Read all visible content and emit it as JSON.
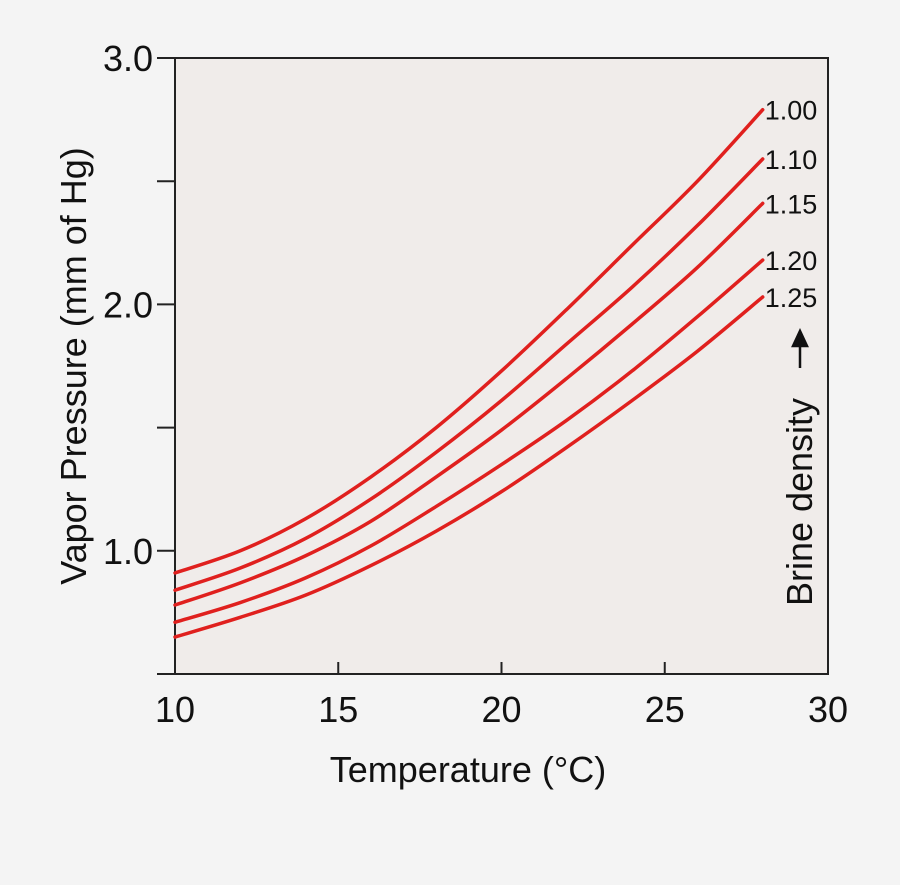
{
  "colors": {
    "page_background": "#f4f4f4",
    "plot_background": "#f0ecea",
    "axis": "#222222",
    "text": "#111111",
    "series_line": "#e0201e"
  },
  "chart_data": {
    "type": "line",
    "title": "",
    "xlabel": "Temperature (°C)",
    "ylabel": "Vapor Pressure (mm of Hg)",
    "xlim": [
      10,
      30
    ],
    "ylim": [
      0.5,
      3.0
    ],
    "x_major_ticks": [
      10,
      15,
      20,
      25,
      30
    ],
    "x_tick_labels": [
      "10",
      "15",
      "20",
      "25",
      "30"
    ],
    "y_major_ticks": [
      1.0,
      2.0,
      3.0
    ],
    "y_tick_labels": [
      "1.0",
      "2.0",
      "3.0"
    ],
    "y_minor_ticks": [
      0.5,
      1.5,
      2.5
    ],
    "grid": false,
    "annotation": "Brine density",
    "x": [
      10,
      12,
      14,
      16,
      18,
      20,
      22,
      24,
      26,
      28
    ],
    "series": [
      {
        "name": "1.00",
        "values": [
          0.91,
          1.0,
          1.13,
          1.3,
          1.5,
          1.73,
          1.98,
          2.24,
          2.5,
          2.79
        ]
      },
      {
        "name": "1.10",
        "values": [
          0.84,
          0.93,
          1.05,
          1.21,
          1.4,
          1.61,
          1.84,
          2.07,
          2.32,
          2.59
        ]
      },
      {
        "name": "1.15",
        "values": [
          0.78,
          0.87,
          0.98,
          1.12,
          1.3,
          1.49,
          1.7,
          1.92,
          2.15,
          2.41
        ]
      },
      {
        "name": "1.20",
        "values": [
          0.71,
          0.79,
          0.89,
          1.02,
          1.18,
          1.35,
          1.53,
          1.73,
          1.95,
          2.18
        ]
      },
      {
        "name": "1.25",
        "values": [
          0.65,
          0.73,
          0.82,
          0.94,
          1.08,
          1.24,
          1.42,
          1.61,
          1.81,
          2.03
        ]
      }
    ]
  }
}
